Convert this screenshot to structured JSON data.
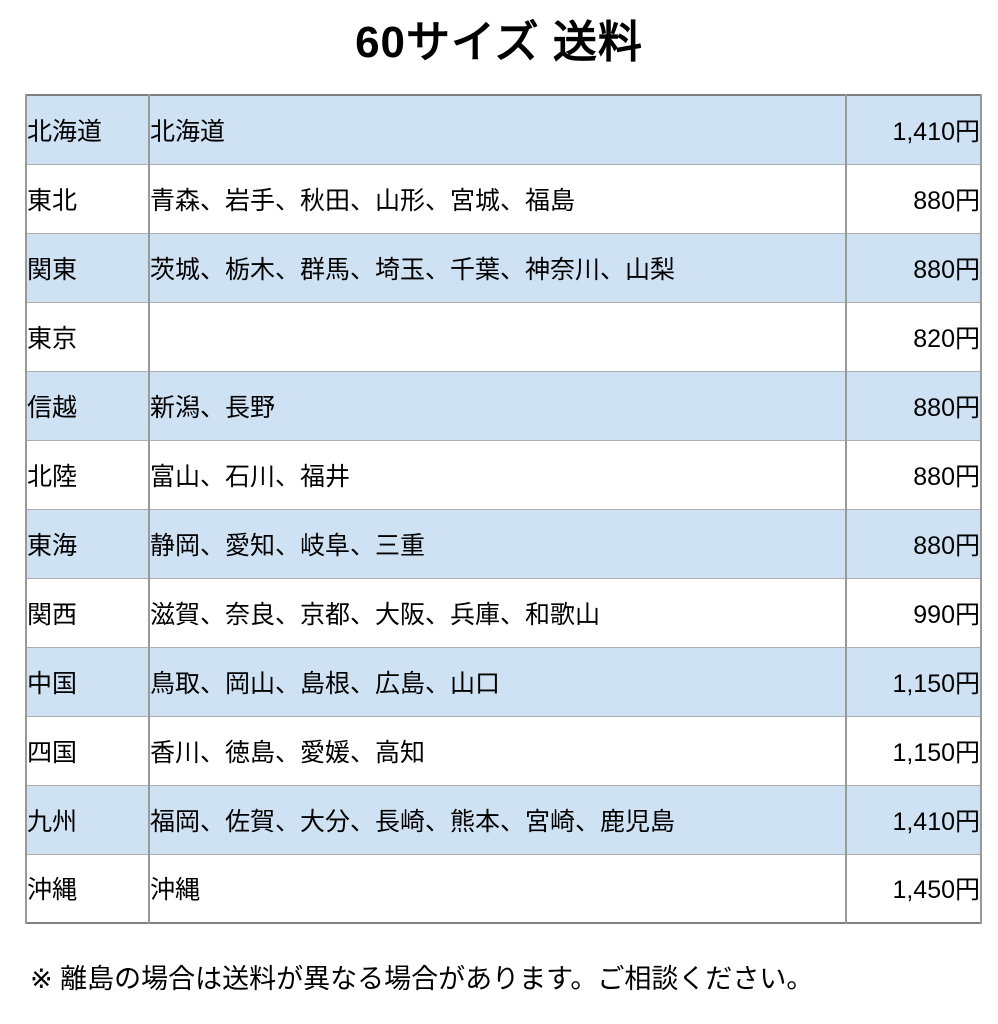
{
  "chart_data": {
    "type": "table",
    "title": "60サイズ 送料",
    "columns": [
      "region",
      "prefectures",
      "price"
    ],
    "rows": [
      {
        "region": "北海道",
        "prefectures": "北海道",
        "price": "1,410円"
      },
      {
        "region": "東北",
        "prefectures": "青森、岩手、秋田、山形、宮城、福島",
        "price": "880円"
      },
      {
        "region": "関東",
        "prefectures": "茨城、栃木、群馬、埼玉、千葉、神奈川、山梨",
        "price": "880円"
      },
      {
        "region": "東京",
        "prefectures": "",
        "price": "820円"
      },
      {
        "region": "信越",
        "prefectures": "新潟、長野",
        "price": "880円"
      },
      {
        "region": "北陸",
        "prefectures": "富山、石川、福井",
        "price": "880円"
      },
      {
        "region": "東海",
        "prefectures": "静岡、愛知、岐阜、三重",
        "price": "880円"
      },
      {
        "region": "関西",
        "prefectures": "滋賀、奈良、京都、大阪、兵庫、和歌山",
        "price": "990円"
      },
      {
        "region": "中国",
        "prefectures": "鳥取、岡山、島根、広島、山口",
        "price": "1,150円"
      },
      {
        "region": "四国",
        "prefectures": "香川、徳島、愛媛、高知",
        "price": "1,150円"
      },
      {
        "region": "九州",
        "prefectures": "福岡、佐賀、大分、長崎、熊本、宮崎、鹿児島",
        "price": "1,410円"
      },
      {
        "region": "沖縄",
        "prefectures": "沖縄",
        "price": "1,450円"
      }
    ],
    "footnote": "※ 離島の場合は送料が異なる場合があります。ご相談ください。",
    "colors": {
      "row_stripe": "#cfe2f3",
      "row_plain": "#ffffff",
      "outer_border": "#7f7f7f",
      "inner_border": "#999999",
      "text": "#000000"
    },
    "layout": {
      "stripe_pattern": "odd rows highlighted, starting with first row",
      "grid": "on",
      "price_alignment": "right"
    }
  }
}
